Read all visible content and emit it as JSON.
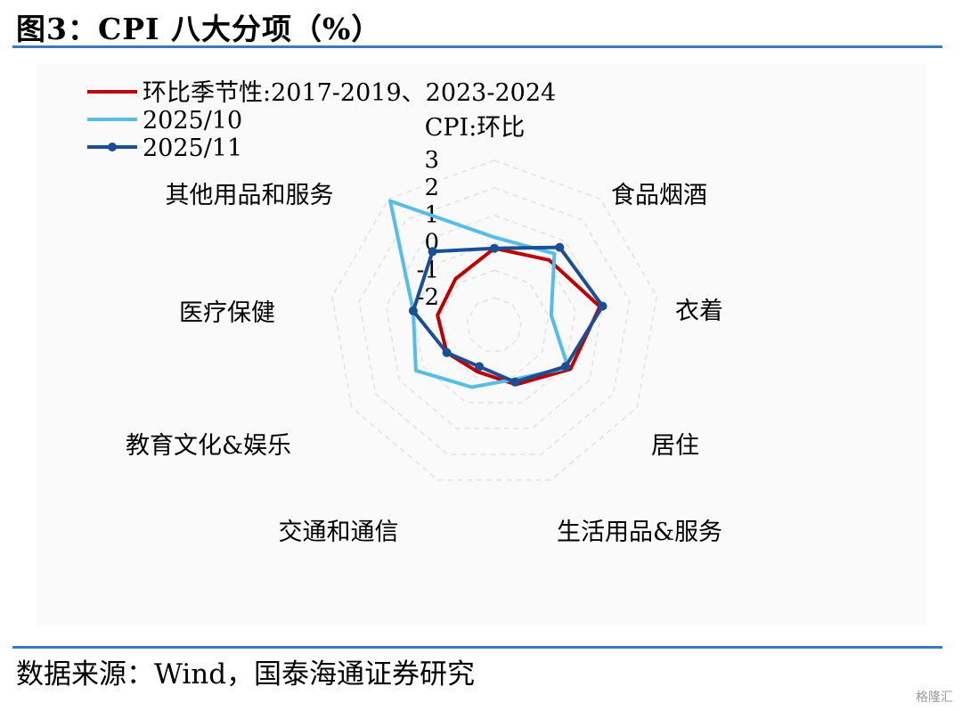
{
  "header": {
    "title": "图3：CPI 八大分项（%）"
  },
  "footer": {
    "source": "数据来源：Wind，国泰海通证券研究",
    "watermark": "格隆汇"
  },
  "chart_data": {
    "type": "radar",
    "title": "CPI 八大分项（%）",
    "axes": [
      "CPI:环比",
      "食品烟酒",
      "衣着",
      "居住",
      "生活用品&服务",
      "交通和通信",
      "教育文化&娱乐",
      "医疗保健",
      "其他用品和服务"
    ],
    "r_ticks": [
      "3",
      "2",
      "1",
      "0",
      "-1",
      "-2"
    ],
    "rlim": [
      -3,
      3
    ],
    "grid": true,
    "legend_position": "top-left",
    "series": [
      {
        "name": "环比季节性:2017-2019、2023-2024",
        "color": "#c00000",
        "marker": false,
        "values": [
          -0.2,
          0.1,
          0.9,
          0.2,
          -0.7,
          -1.2,
          -1.0,
          -0.9,
          -0.8
        ]
      },
      {
        "name": "2025/10",
        "color": "#56bce8",
        "marker": false,
        "values": [
          0.2,
          0.4,
          -0.9,
          0.1,
          -0.9,
          -0.6,
          0.3,
          0.0,
          2.9
        ]
      },
      {
        "name": "2025/11",
        "color": "#1a4f95",
        "marker": true,
        "values": [
          -0.2,
          0.7,
          1.0,
          0.0,
          -0.8,
          -1.4,
          -1.0,
          0.0,
          0.5
        ]
      }
    ]
  }
}
